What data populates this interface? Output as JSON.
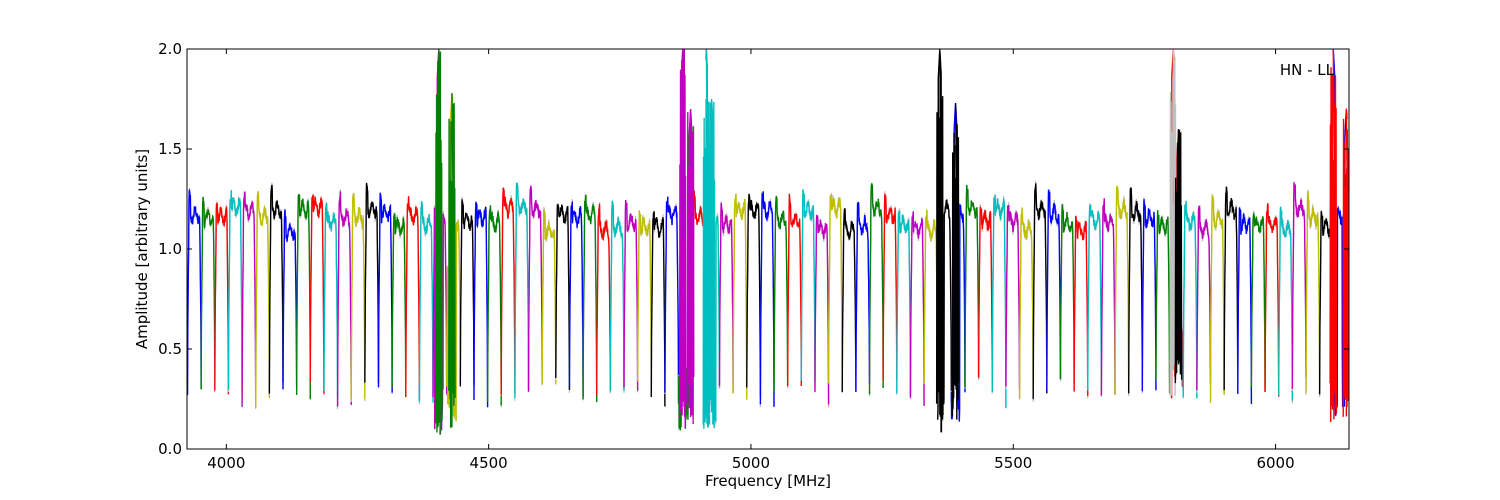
{
  "chart_data": {
    "type": "line",
    "title": "",
    "annotation": "HN - LL",
    "xlabel": "Frequency [MHz]",
    "ylabel": "Amplitude [arbitrary units]",
    "xlim": [
      3925,
      6140
    ],
    "ylim": [
      0.0,
      2.0
    ],
    "xticks": [
      4000,
      4500,
      5000,
      5500,
      6000
    ],
    "xtick_labels": [
      "4000",
      "4500",
      "5000",
      "5500",
      "6000"
    ],
    "yticks": [
      0.0,
      0.5,
      1.0,
      1.5,
      2.0
    ],
    "ytick_labels": [
      "0.0",
      "0.5",
      "1.0",
      "1.5",
      "2.0"
    ],
    "grid": false,
    "legend": "none",
    "color_cycle": [
      "#0000ff",
      "#008000",
      "#ff0000",
      "#00bfbf",
      "#bf00bf",
      "#bfbf00",
      "#000000"
    ],
    "background_trace_color": "#c0c0c0",
    "channel_width_mhz": 26,
    "channel_start_mhz": 3926,
    "channel_count": 86,
    "passband_level": 1.15,
    "dip_level": 0.28,
    "rfi_spikes": [
      {
        "x": 4405,
        "peak": 2.0,
        "min": 0.07,
        "color": "#008000"
      },
      {
        "x": 4430,
        "peak": 1.78,
        "min": 0.1,
        "color": "#008000"
      },
      {
        "x": 4870,
        "peak": 2.0,
        "min": 0.09,
        "color": "#bf00bf"
      },
      {
        "x": 4885,
        "peak": 1.7,
        "min": 0.12,
        "color": "#bf00bf"
      },
      {
        "x": 4915,
        "peak": 2.0,
        "min": 0.08,
        "color": "#00bfbf"
      },
      {
        "x": 4925,
        "peak": 1.75,
        "min": 0.1,
        "color": "#00bfbf"
      },
      {
        "x": 5360,
        "peak": 2.0,
        "min": 0.08,
        "color": "#000000"
      },
      {
        "x": 5390,
        "peak": 1.73,
        "min": 0.12,
        "color": "#000000"
      },
      {
        "x": 5805,
        "peak": 2.0,
        "min": 0.25,
        "color": "#c0c0c0"
      },
      {
        "x": 5815,
        "peak": 1.6,
        "min": 0.3,
        "color": "#000000"
      },
      {
        "x": 6110,
        "peak": 2.0,
        "min": 0.13,
        "color": "#ff0000"
      },
      {
        "x": 6135,
        "peak": 1.7,
        "min": 0.15,
        "color": "#ff0000"
      }
    ]
  }
}
